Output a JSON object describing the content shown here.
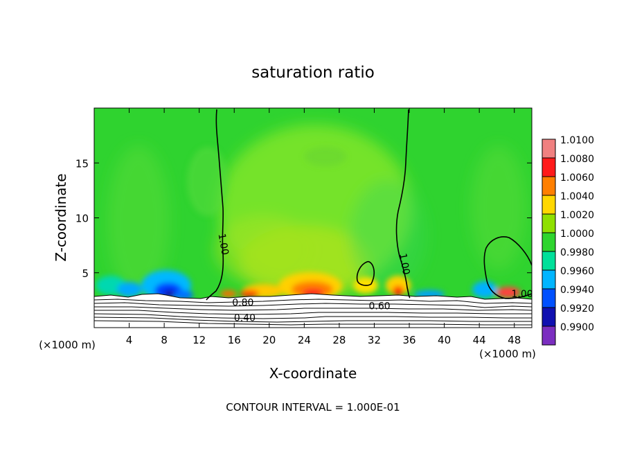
{
  "chart_data": {
    "type": "heatmap",
    "title": "saturation ratio",
    "xlabel": "X-coordinate",
    "ylabel": "Z-coordinate",
    "x_unit_left": "(×1000 m)",
    "x_unit_right": "(×1000 m)",
    "xlim": [
      0,
      50
    ],
    "ylim": [
      0,
      20
    ],
    "xticks": [
      4,
      8,
      12,
      16,
      20,
      24,
      28,
      32,
      36,
      40,
      44,
      48
    ],
    "yticks": [
      5,
      10,
      15
    ],
    "colorbar": {
      "levels": [
        "1.0100",
        "1.0080",
        "1.0060",
        "1.0040",
        "1.0020",
        "1.0000",
        "0.9980",
        "0.9960",
        "0.9940",
        "0.9920",
        "0.9900"
      ],
      "colors": [
        "#f08080",
        "#ff1a1a",
        "#ff7f00",
        "#ffd700",
        "#8fe000",
        "#2ed52e",
        "#00e09a",
        "#00b5ff",
        "#0050ff",
        "#1010b0",
        "#7b2ec0"
      ]
    },
    "contour_labels": [
      {
        "text": "1.00",
        "x": 14.8,
        "y": 7.6
      },
      {
        "text": "1.00",
        "x": 35.5,
        "y": 5.8
      },
      {
        "text": "1.00",
        "x": 48.9,
        "y": 3.1
      },
      {
        "text": "0.80",
        "x": 17.0,
        "y": 2.3
      },
      {
        "text": "0.60",
        "x": 32.6,
        "y": 2.0
      },
      {
        "text": "0.40",
        "x": 17.2,
        "y": 0.9
      }
    ],
    "contour_interval_label": "CONTOUR INTERVAL = 1.000E-01"
  }
}
